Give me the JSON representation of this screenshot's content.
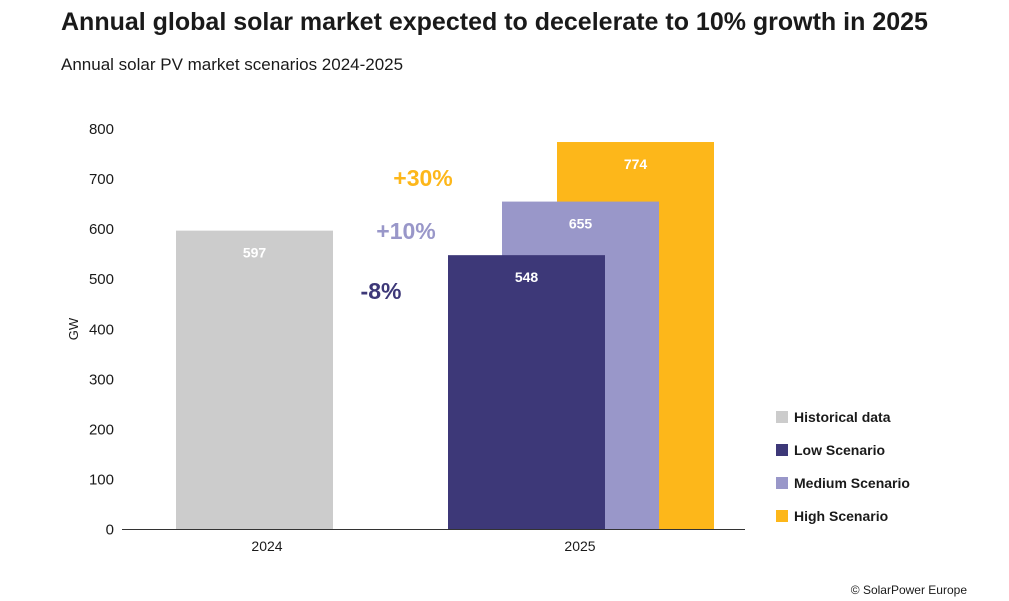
{
  "chart_data": {
    "type": "bar",
    "title": "Annual global solar market expected to decelerate to 10% growth in 2025",
    "subtitle": "Annual solar PV market scenarios 2024-2025",
    "xlabel": "",
    "ylabel": "GW",
    "ylim": [
      0,
      800
    ],
    "yticks": [
      "0",
      "100",
      "200",
      "300",
      "400",
      "500",
      "600",
      "700",
      "800"
    ],
    "categories": [
      "2024",
      "2025"
    ],
    "grid": false,
    "legend_position": "right",
    "series": [
      {
        "name": "Historical data",
        "color": "#cccccc",
        "label_color": "#ffffff",
        "values": [
          597,
          null
        ]
      },
      {
        "name": "High Scenario",
        "color": "#fdb71a",
        "label_color": "#ffffff",
        "values": [
          null,
          774
        ]
      },
      {
        "name": "Medium Scenario",
        "color": "#9997c9",
        "label_color": "#ffffff",
        "values": [
          null,
          655
        ]
      },
      {
        "name": "Low Scenario",
        "color": "#3d3878",
        "label_color": "#ffffff",
        "values": [
          null,
          548
        ]
      }
    ],
    "legend_order": [
      "Historical data",
      "Low Scenario",
      "Medium Scenario",
      "High Scenario"
    ],
    "annotations": [
      {
        "text": "+30%",
        "series": "High Scenario",
        "color": "#fdb71a"
      },
      {
        "text": "+10%",
        "series": "Medium Scenario",
        "color": "#9997c9"
      },
      {
        "text": "-8%",
        "series": "Low Scenario",
        "color": "#3d3878"
      }
    ]
  },
  "credit": "© SolarPower Europe"
}
